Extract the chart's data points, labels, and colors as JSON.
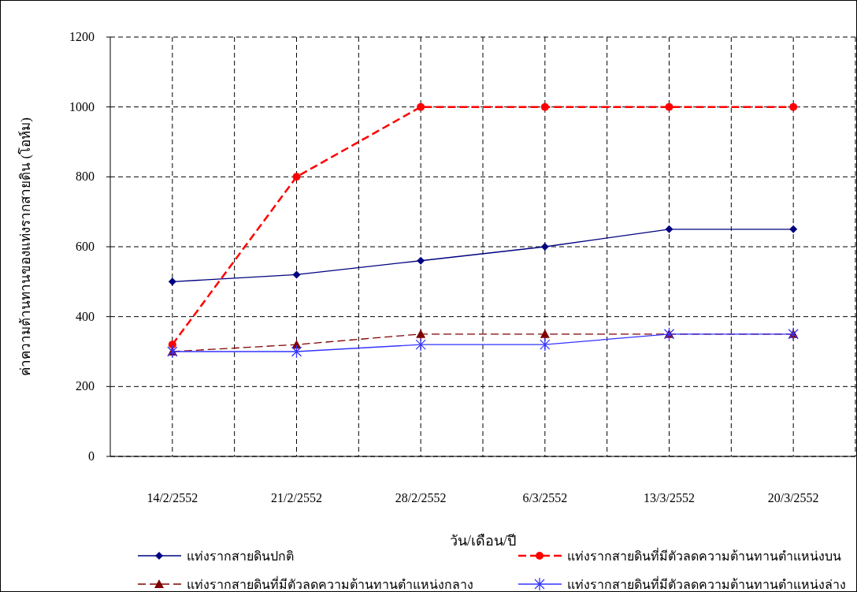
{
  "chart_data": {
    "type": "line",
    "categories": [
      "14/2/2552",
      "21/2/2552",
      "28/2/2552",
      "6/3/2552",
      "13/3/2552",
      "20/3/2552"
    ],
    "xlabel": "วัน/เดือน/ปี",
    "ylabel": "ค่าความต้านทานของแท่งรากสายดิน (โอห์ม)",
    "ylim": [
      0,
      1200
    ],
    "yticks": [
      0,
      200,
      400,
      600,
      800,
      1000,
      1200
    ],
    "grid": true,
    "legend": "bottom",
    "series": [
      {
        "name": "แท่งรากสายดินปกติ",
        "color": "#000080",
        "marker": "diamond",
        "line_style": "solid",
        "values": [
          500,
          520,
          560,
          600,
          650,
          650
        ]
      },
      {
        "name": "แท่งรากสายดินที่มีตัวลดความต้านทานตำแหน่งบน",
        "color": "#ff0000",
        "marker": "circle",
        "line_style": "dashed",
        "values": [
          320,
          800,
          1000,
          1000,
          1000,
          1000
        ]
      },
      {
        "name": "แท่งรากสายดินที่มีตัวลดความต้านทานตำแหน่งกลาง",
        "color": "#800000",
        "marker": "triangle",
        "line_style": "dashed",
        "values": [
          300,
          320,
          350,
          350,
          350,
          350
        ]
      },
      {
        "name": "แท่งรากสายดินที่มีตัวลดความต้านทานตำแหน่งล่าง",
        "color": "#3333ff",
        "marker": "cross",
        "line_style": "solid",
        "values": [
          300,
          300,
          320,
          320,
          350,
          350
        ]
      }
    ]
  }
}
